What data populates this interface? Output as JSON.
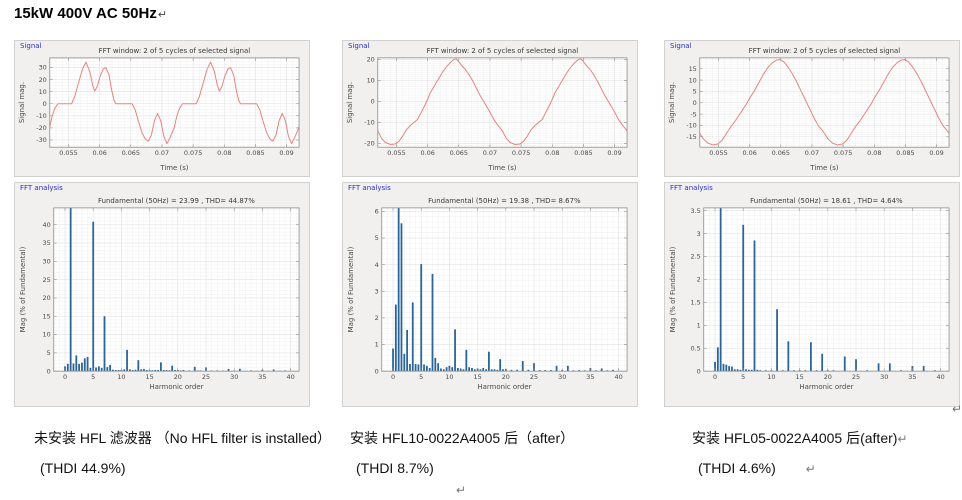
{
  "page": {
    "title": "15kW 400V AC 50Hz",
    "pilcrow": "↵"
  },
  "colors": {
    "waveform_line": "#e8837f",
    "bar_fill": "#2b6496",
    "group_label_blue": "#2d2dd0",
    "box_bg": "#f1f0ee",
    "box_border": "#d2d1cf",
    "axes_border": "#8c8c8c",
    "grid_minor": "#ececec",
    "grid_major": "#e1e1e1",
    "tick_text": "#4a4a4a",
    "title_text": "#3a3a3a"
  },
  "captions": [
    {
      "line1": "未安装 HFL 滤波器 （No HFL filter is installed）",
      "line2": "(THDI 44.9%)",
      "pilcrow": ""
    },
    {
      "line1": "安装 HFL10-0022A4005 后（after）",
      "line2": "(THDI 8.7%)",
      "pilcrow": ""
    },
    {
      "line1": "安装 HFL05-0022A4005 后(after)",
      "line2": "(THDI 4.6%)",
      "pilcrow": "↵"
    }
  ],
  "marks": {
    "bottom_center_pilcrow": "↵",
    "figure3_end_pilcrow": "↵"
  },
  "chart_data": [
    {
      "type": "line",
      "group_label": "Signal",
      "title": "FFT window: 2 of 5 cycles of selected signal",
      "xlabel": "Time (s)",
      "ylabel": "Signal mag.",
      "xlim": [
        0.052,
        0.092
      ],
      "ylim": [
        -36,
        38
      ],
      "xticks": [
        0.055,
        0.06,
        0.065,
        0.07,
        0.075,
        0.08,
        0.085,
        0.09
      ],
      "xtick_labels": [
        "0.055",
        "0.06",
        "0.065",
        "0.07",
        "0.075",
        "0.08",
        "0.085",
        "0.09"
      ],
      "yticks": [
        -30,
        -20,
        -10,
        0,
        10,
        20,
        30
      ],
      "ytick_labels": [
        "-30",
        "-20",
        "-10",
        "0",
        "10",
        "20",
        "30"
      ],
      "grid": [
        0.001,
        2.5
      ],
      "period": 0.02,
      "cycles": 2,
      "cycle_points": [
        [
          0.052,
          -19
        ],
        [
          0.0524,
          -10
        ],
        [
          0.0528,
          -4
        ],
        [
          0.0533,
          0
        ],
        [
          0.0555,
          0
        ],
        [
          0.056,
          6
        ],
        [
          0.0566,
          17
        ],
        [
          0.0572,
          28
        ],
        [
          0.0578,
          34.5
        ],
        [
          0.0584,
          27
        ],
        [
          0.0589,
          15
        ],
        [
          0.0592,
          10.5
        ],
        [
          0.0596,
          14
        ],
        [
          0.0601,
          23
        ],
        [
          0.0606,
          29
        ],
        [
          0.061,
          30
        ],
        [
          0.0615,
          24
        ],
        [
          0.0619,
          12
        ],
        [
          0.0623,
          3
        ],
        [
          0.0626,
          0
        ],
        [
          0.0652,
          0
        ],
        [
          0.0657,
          -5
        ],
        [
          0.0662,
          -14
        ],
        [
          0.0668,
          -24
        ],
        [
          0.0673,
          -29
        ],
        [
          0.0678,
          -31
        ],
        [
          0.0683,
          -26
        ],
        [
          0.0688,
          -14
        ],
        [
          0.0693,
          -8
        ],
        [
          0.0698,
          -14
        ],
        [
          0.0703,
          -27
        ],
        [
          0.0708,
          -33
        ],
        [
          0.0713,
          -28
        ],
        [
          0.0717,
          -23
        ],
        [
          0.072,
          -19
        ]
      ]
    },
    {
      "type": "bar",
      "group_label": "FFT analysis",
      "title": "Fundamental (50Hz) = 23.99 , THD= 44.87%",
      "xlabel": "Harmonic order",
      "ylabel": "Mag (% of Fundamental)",
      "xlim": [
        -2,
        41.5
      ],
      "ylim": [
        0,
        44.6
      ],
      "xticks": [
        0,
        5,
        10,
        15,
        20,
        25,
        30,
        35,
        40
      ],
      "xtick_labels": [
        "0",
        "5",
        "10",
        "15",
        "20",
        "25",
        "30",
        "35",
        "40"
      ],
      "yticks": [
        0,
        5,
        10,
        15,
        20,
        25,
        30,
        35,
        40
      ],
      "ytick_labels": [
        "0",
        "5",
        "10",
        "15",
        "20",
        "25",
        "30",
        "35",
        "40"
      ],
      "grid": [
        1,
        1
      ],
      "bars": [
        [
          0,
          1.3
        ],
        [
          0.5,
          2.0
        ],
        [
          1,
          100
        ],
        [
          1.5,
          2.1
        ],
        [
          2,
          4.3
        ],
        [
          2.5,
          2.0
        ],
        [
          3,
          2.3
        ],
        [
          3.5,
          3.5
        ],
        [
          4,
          3.9
        ],
        [
          4.5,
          0.9
        ],
        [
          5,
          40.8
        ],
        [
          5.5,
          1.0
        ],
        [
          6,
          1.3
        ],
        [
          6.5,
          0.9
        ],
        [
          7,
          15.0
        ],
        [
          7.5,
          1.1
        ],
        [
          8,
          1.7
        ],
        [
          8.5,
          0.4
        ],
        [
          9,
          0.3
        ],
        [
          9.5,
          0.3
        ],
        [
          10,
          0.35
        ],
        [
          10.5,
          0.5
        ],
        [
          11,
          5.8
        ],
        [
          11.5,
          0.5
        ],
        [
          12,
          0.3
        ],
        [
          12.5,
          0.4
        ],
        [
          13,
          3.0
        ],
        [
          13.5,
          0.5
        ],
        [
          14,
          0.6
        ],
        [
          14.5,
          0.3
        ],
        [
          15,
          0.3
        ],
        [
          15.5,
          0.25
        ],
        [
          16,
          0.3
        ],
        [
          16.5,
          0.3
        ],
        [
          17,
          2.4
        ],
        [
          17.5,
          0.3
        ],
        [
          18,
          0.3
        ],
        [
          18.5,
          0.25
        ],
        [
          19,
          1.5
        ],
        [
          19.5,
          0.3
        ],
        [
          20,
          0.3
        ],
        [
          20.5,
          0.2
        ],
        [
          21,
          0.3
        ],
        [
          22,
          0.2
        ],
        [
          23,
          1.2
        ],
        [
          23.5,
          0.2
        ],
        [
          24,
          0.2
        ],
        [
          25,
          1.0
        ],
        [
          26,
          0.15
        ],
        [
          27,
          0.2
        ],
        [
          28,
          0.15
        ],
        [
          29,
          0.6
        ],
        [
          30,
          0.15
        ],
        [
          31,
          0.65
        ],
        [
          32,
          0.1
        ],
        [
          33,
          0.2
        ],
        [
          34,
          0.1
        ],
        [
          35,
          0.4
        ],
        [
          36,
          0.1
        ],
        [
          37,
          0.45
        ],
        [
          38,
          0.1
        ],
        [
          39,
          0.2
        ]
      ]
    },
    {
      "type": "line",
      "group_label": "Signal",
      "title": "FFT window: 2 of 5 cycles of selected signal",
      "xlabel": "Time (s)",
      "ylabel": "Signal mag.",
      "xlim": [
        0.052,
        0.092
      ],
      "ylim": [
        -21.8,
        20.8
      ],
      "xticks": [
        0.055,
        0.06,
        0.065,
        0.07,
        0.075,
        0.08,
        0.085,
        0.09
      ],
      "xtick_labels": [
        "0.055",
        "0.06",
        "0.065",
        "0.07",
        "0.075",
        "0.08",
        "0.085",
        "0.09"
      ],
      "yticks": [
        -20,
        -10,
        0,
        10,
        20
      ],
      "ytick_labels": [
        "-20",
        "-10",
        "0",
        "10",
        "20"
      ],
      "grid": [
        0.001,
        1
      ],
      "period": 0.02,
      "cycles": 2,
      "cycle_points": [
        [
          0.052,
          -14
        ],
        [
          0.0526,
          -17.5
        ],
        [
          0.0532,
          -19.5
        ],
        [
          0.054,
          -20.5
        ],
        [
          0.0548,
          -20.3
        ],
        [
          0.0554,
          -19
        ],
        [
          0.056,
          -16.5
        ],
        [
          0.0566,
          -13.5
        ],
        [
          0.0572,
          -11.5
        ],
        [
          0.0578,
          -10
        ],
        [
          0.0584,
          -8.5
        ],
        [
          0.059,
          -5
        ],
        [
          0.0596,
          -1.5
        ],
        [
          0.06,
          1
        ],
        [
          0.0604,
          4
        ],
        [
          0.0608,
          6
        ],
        [
          0.0613,
          8.5
        ],
        [
          0.0618,
          11
        ],
        [
          0.0624,
          14
        ],
        [
          0.063,
          16.5
        ],
        [
          0.0636,
          18.5
        ],
        [
          0.0642,
          20
        ],
        [
          0.0646,
          20.3
        ],
        [
          0.065,
          19
        ],
        [
          0.0655,
          17
        ],
        [
          0.066,
          15.5
        ],
        [
          0.0666,
          13
        ],
        [
          0.0672,
          10
        ],
        [
          0.0678,
          6.5
        ],
        [
          0.0684,
          3
        ],
        [
          0.069,
          0
        ],
        [
          0.0695,
          -2.5
        ],
        [
          0.07,
          -5
        ],
        [
          0.0706,
          -8.5
        ],
        [
          0.0712,
          -11
        ],
        [
          0.072,
          -14
        ]
      ]
    },
    {
      "type": "bar",
      "group_label": "FFT analysis",
      "title": "Fundamental (50Hz) = 19.38 , THD= 8.67%",
      "xlabel": "Harmonic order",
      "ylabel": "Mag (% of Fundamental)",
      "xlim": [
        -2,
        41.5
      ],
      "ylim": [
        0,
        6.13
      ],
      "xticks": [
        0,
        5,
        10,
        15,
        20,
        25,
        30,
        35,
        40
      ],
      "xtick_labels": [
        "0",
        "5",
        "10",
        "15",
        "20",
        "25",
        "30",
        "35",
        "40"
      ],
      "yticks": [
        0,
        1,
        2,
        3,
        4,
        5,
        6
      ],
      "ytick_labels": [
        "0",
        "1",
        "2",
        "3",
        "4",
        "5",
        "6"
      ],
      "grid": [
        1,
        0.2
      ],
      "bars": [
        [
          0,
          0.85
        ],
        [
          0.5,
          2.5
        ],
        [
          1,
          100
        ],
        [
          1.5,
          5.55
        ],
        [
          2,
          0.65
        ],
        [
          2.5,
          1.55
        ],
        [
          3,
          0.27
        ],
        [
          3.5,
          2.58
        ],
        [
          4,
          0.27
        ],
        [
          4.5,
          0.25
        ],
        [
          5,
          4.02
        ],
        [
          5.5,
          0.25
        ],
        [
          6,
          0.2
        ],
        [
          6.5,
          0.12
        ],
        [
          7,
          3.65
        ],
        [
          7.5,
          0.5
        ],
        [
          8,
          0.3
        ],
        [
          8.5,
          0.1
        ],
        [
          9,
          0.07
        ],
        [
          9.5,
          0.15
        ],
        [
          10,
          0.2
        ],
        [
          10.5,
          0.15
        ],
        [
          11,
          1.57
        ],
        [
          11.5,
          0.12
        ],
        [
          12,
          0.1
        ],
        [
          12.5,
          0.07
        ],
        [
          13,
          0.8
        ],
        [
          13.5,
          0.15
        ],
        [
          14,
          0.12
        ],
        [
          14.5,
          0.07
        ],
        [
          15,
          0.1
        ],
        [
          15.5,
          0.07
        ],
        [
          16,
          0.12
        ],
        [
          16.5,
          0.07
        ],
        [
          17,
          0.73
        ],
        [
          17.5,
          0.07
        ],
        [
          18,
          0.07
        ],
        [
          18.5,
          0.05
        ],
        [
          19,
          0.45
        ],
        [
          19.5,
          0.07
        ],
        [
          20,
          0.08
        ],
        [
          21,
          0.05
        ],
        [
          22,
          0.05
        ],
        [
          23,
          0.38
        ],
        [
          24,
          0.05
        ],
        [
          25,
          0.3
        ],
        [
          26,
          0.04
        ],
        [
          27,
          0.04
        ],
        [
          28,
          0.04
        ],
        [
          29,
          0.2
        ],
        [
          30,
          0.04
        ],
        [
          31,
          0.2
        ],
        [
          32,
          0.03
        ],
        [
          33,
          0.04
        ],
        [
          34,
          0.03
        ],
        [
          35,
          0.12
        ],
        [
          36,
          0.03
        ],
        [
          37,
          0.1
        ],
        [
          38,
          0.03
        ],
        [
          39,
          0.05
        ]
      ]
    },
    {
      "type": "line",
      "group_label": "Signal",
      "title": "FFT window: 2 of 5 cycles of selected signal",
      "xlabel": "Time (s)",
      "ylabel": "Signal mag.",
      "xlim": [
        0.052,
        0.092
      ],
      "ylim": [
        -19.6,
        19.8
      ],
      "xticks": [
        0.055,
        0.06,
        0.065,
        0.07,
        0.075,
        0.08,
        0.085,
        0.09
      ],
      "xtick_labels": [
        "0.055",
        "0.06",
        "0.065",
        "0.07",
        "0.075",
        "0.08",
        "0.085",
        "0.09"
      ],
      "yticks": [
        -15,
        -10,
        -5,
        0,
        5,
        10,
        15
      ],
      "ytick_labels": [
        "-15",
        "-10",
        "-5",
        "0",
        "5",
        "10",
        "15"
      ],
      "grid": [
        0.001,
        1
      ],
      "period": 0.02,
      "cycles": 2,
      "cycle_points": [
        [
          0.052,
          -13.5
        ],
        [
          0.0526,
          -16
        ],
        [
          0.0533,
          -17.8
        ],
        [
          0.0541,
          -18.6
        ],
        [
          0.0549,
          -18.2
        ],
        [
          0.0556,
          -16.5
        ],
        [
          0.0563,
          -13.5
        ],
        [
          0.057,
          -10.5
        ],
        [
          0.0577,
          -8
        ],
        [
          0.0583,
          -5.5
        ],
        [
          0.0589,
          -3
        ],
        [
          0.0595,
          -0.5
        ],
        [
          0.0601,
          2.5
        ],
        [
          0.0608,
          5.5
        ],
        [
          0.0615,
          9
        ],
        [
          0.0622,
          12.5
        ],
        [
          0.0629,
          15.5
        ],
        [
          0.0636,
          17.5
        ],
        [
          0.0643,
          18.8
        ],
        [
          0.0649,
          19.1
        ],
        [
          0.0655,
          18
        ],
        [
          0.0661,
          16
        ],
        [
          0.0668,
          13
        ],
        [
          0.0675,
          9.5
        ],
        [
          0.0682,
          5.5
        ],
        [
          0.0689,
          1.5
        ],
        [
          0.0696,
          -2.5
        ],
        [
          0.0703,
          -6.5
        ],
        [
          0.071,
          -10
        ],
        [
          0.0716,
          -12
        ],
        [
          0.072,
          -13.5
        ]
      ]
    },
    {
      "type": "bar",
      "group_label": "FFT analysis",
      "title": "Fundamental (50Hz) = 18.61 , THD= 4.64%",
      "xlabel": "Harmonic order",
      "ylabel": "Mag (% of Fundamental)",
      "xlim": [
        -2,
        41.5
      ],
      "ylim": [
        0,
        3.56
      ],
      "xticks": [
        0,
        5,
        10,
        15,
        20,
        25,
        30,
        35,
        40
      ],
      "xtick_labels": [
        "0",
        "5",
        "10",
        "15",
        "20",
        "25",
        "30",
        "35",
        "40"
      ],
      "yticks": [
        0,
        0.5,
        1,
        1.5,
        2,
        2.5,
        3,
        3.5
      ],
      "ytick_labels": [
        "0",
        "0.5",
        "1",
        "1.5",
        "2",
        "2.5",
        "3",
        "3.5"
      ],
      "grid": [
        1,
        0.1
      ],
      "bars": [
        [
          0,
          0.2
        ],
        [
          0.5,
          0.52
        ],
        [
          1,
          100
        ],
        [
          1.5,
          0.16
        ],
        [
          2,
          0.14
        ],
        [
          2.5,
          0.11
        ],
        [
          3,
          0.1
        ],
        [
          3.5,
          0.04
        ],
        [
          4,
          0.04
        ],
        [
          4.5,
          0.03
        ],
        [
          5,
          3.19
        ],
        [
          5.5,
          0.04
        ],
        [
          6,
          0.03
        ],
        [
          6.5,
          0.03
        ],
        [
          7,
          2.85
        ],
        [
          7.5,
          0.03
        ],
        [
          8,
          0.02
        ],
        [
          9,
          0.02
        ],
        [
          10,
          0.02
        ],
        [
          11,
          1.35
        ],
        [
          12,
          0.02
        ],
        [
          13,
          0.65
        ],
        [
          14,
          0.02
        ],
        [
          15,
          0.02
        ],
        [
          16,
          0.02
        ],
        [
          17,
          0.63
        ],
        [
          18,
          0.02
        ],
        [
          19,
          0.38
        ],
        [
          20,
          0.02
        ],
        [
          21,
          0.02
        ],
        [
          23,
          0.32
        ],
        [
          25,
          0.26
        ],
        [
          27,
          0.02
        ],
        [
          29,
          0.17
        ],
        [
          31,
          0.17
        ],
        [
          33,
          0.02
        ],
        [
          35,
          0.11
        ],
        [
          37,
          0.11
        ],
        [
          39,
          0.02
        ]
      ]
    }
  ]
}
